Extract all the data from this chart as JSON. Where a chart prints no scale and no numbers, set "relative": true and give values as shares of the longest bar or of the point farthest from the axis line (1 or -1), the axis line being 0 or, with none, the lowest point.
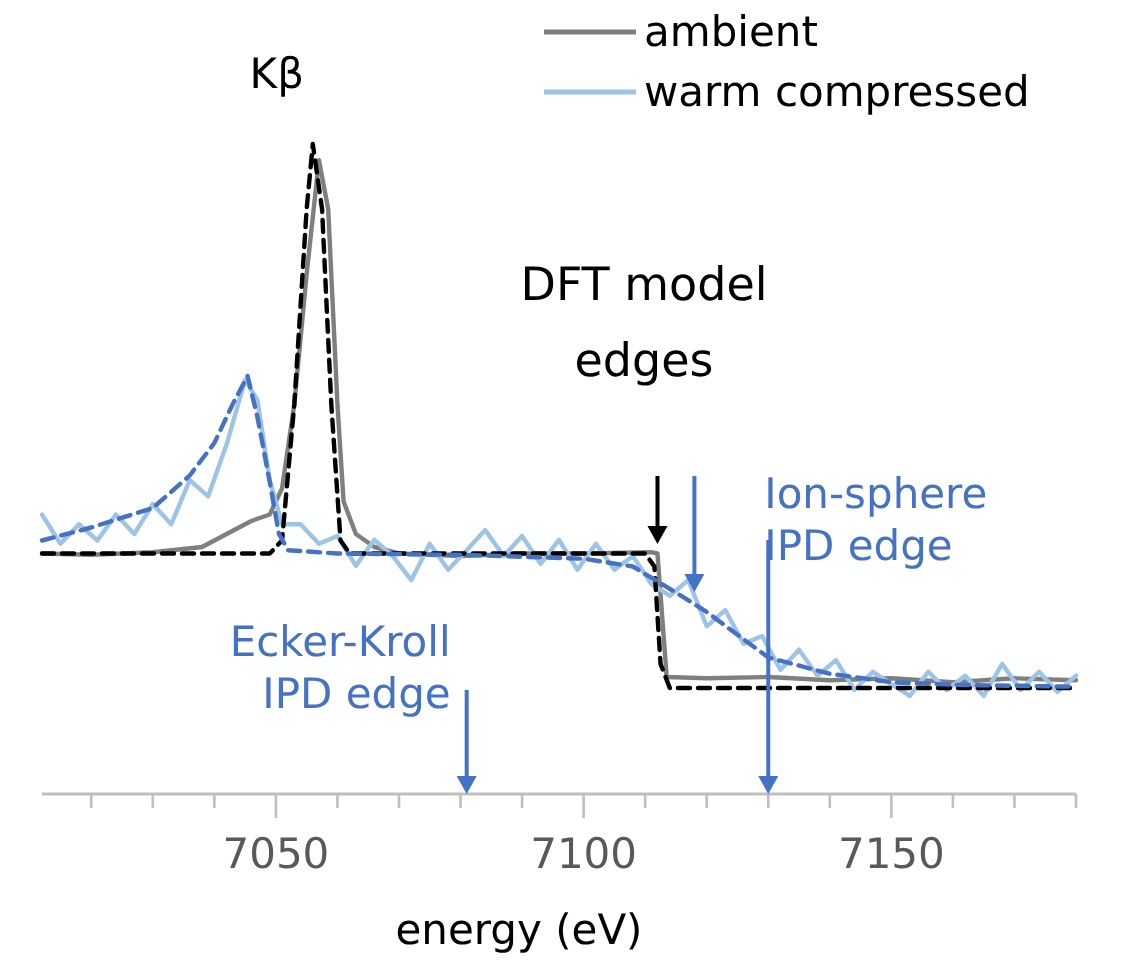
{
  "chart_data": {
    "type": "line",
    "relative": true,
    "xlabel": "energy (eV)",
    "legend": "top right",
    "xlim": [
      7012,
      7180
    ],
    "xticks": [
      {
        "value": 7020,
        "label": null
      },
      {
        "value": 7030,
        "label": null
      },
      {
        "value": 7040,
        "label": null
      },
      7050,
      {
        "value": 7060,
        "label": null
      },
      {
        "value": 7070,
        "label": null
      },
      {
        "value": 7080,
        "label": null
      },
      {
        "value": 7090,
        "label": null
      },
      7100,
      {
        "value": 7110,
        "label": null
      },
      {
        "value": 7120,
        "label": null
      },
      {
        "value": 7130,
        "label": null
      },
      {
        "value": 7140,
        "label": null
      },
      7150,
      {
        "value": 7160,
        "label": null
      },
      {
        "value": 7170,
        "label": null
      },
      {
        "value": 7180,
        "label": null
      }
    ],
    "series": [
      {
        "name": "ambient",
        "color": "#7f7f7f",
        "line_style": "solid",
        "x": [
          7012,
          7020,
          7030,
          7038,
          7042,
          7046,
          7049,
          7051,
          7053,
          7055,
          7057,
          7058.5,
          7060,
          7061,
          7063,
          7066,
          7070,
          7080,
          7090,
          7100,
          7111,
          7112,
          7113.5,
          7120,
          7130,
          7140,
          7150,
          7160,
          7170,
          7180
        ],
        "values": [
          0.37,
          0.368,
          0.372,
          0.38,
          0.4,
          0.42,
          0.43,
          0.47,
          0.6,
          0.8,
          0.975,
          0.9,
          0.6,
          0.45,
          0.4,
          0.38,
          0.37,
          0.366,
          0.37,
          0.37,
          0.372,
          0.37,
          0.18,
          0.178,
          0.18,
          0.175,
          0.178,
          0.172,
          0.178,
          0.175
        ]
      },
      {
        "name": "warm compressed",
        "color": "#9dc3e6",
        "line_style": "solid",
        "x": [
          7012,
          7015,
          7018,
          7021,
          7024,
          7027,
          7030,
          7033,
          7036,
          7039,
          7042,
          7045,
          7047,
          7049,
          7051,
          7054,
          7057,
          7060,
          7063,
          7066,
          7069,
          7072,
          7075,
          7078,
          7081,
          7084,
          7087,
          7090,
          7093,
          7096,
          7099,
          7102,
          7105,
          7108,
          7111,
          7114,
          7117,
          7120,
          7123,
          7126,
          7129,
          7132,
          7135,
          7138,
          7141,
          7144,
          7147,
          7150,
          7153,
          7156,
          7159,
          7162,
          7165,
          7168,
          7171,
          7174,
          7177,
          7180
        ],
        "values": [
          0.43,
          0.385,
          0.415,
          0.39,
          0.43,
          0.4,
          0.446,
          0.415,
          0.483,
          0.458,
          0.538,
          0.637,
          0.606,
          0.483,
          0.415,
          0.415,
          0.385,
          0.397,
          0.351,
          0.391,
          0.366,
          0.329,
          0.385,
          0.345,
          0.375,
          0.406,
          0.366,
          0.397,
          0.354,
          0.391,
          0.345,
          0.385,
          0.345,
          0.366,
          0.323,
          0.305,
          0.329,
          0.258,
          0.283,
          0.231,
          0.243,
          0.191,
          0.222,
          0.182,
          0.206,
          0.16,
          0.188,
          0.169,
          0.151,
          0.188,
          0.16,
          0.182,
          0.151,
          0.2,
          0.16,
          0.188,
          0.157,
          0.182
        ]
      },
      {
        "color": "#000000",
        "line_style": "dashed",
        "x": [
          7012,
          7049,
          7051,
          7053,
          7055,
          7056,
          7057.5,
          7059,
          7060.5,
          7062,
          7110,
          7111.5,
          7112.5,
          7114,
          7180
        ],
        "values": [
          0.37,
          0.37,
          0.39,
          0.6,
          0.9,
          1.0,
          0.9,
          0.6,
          0.39,
          0.37,
          0.37,
          0.35,
          0.2,
          0.163,
          0.163
        ]
      },
      {
        "color": "#4472c4",
        "line_style": "dashed",
        "x": [
          7012,
          7020,
          7030,
          7036,
          7040,
          7043,
          7045.4,
          7047,
          7049,
          7050.5,
          7052,
          7060,
          7080,
          7100,
          7108,
          7115,
          7120,
          7125,
          7130,
          7140,
          7150,
          7160,
          7180
        ],
        "values": [
          0.39,
          0.41,
          0.44,
          0.49,
          0.54,
          0.6,
          0.643,
          0.58,
          0.48,
          0.4,
          0.375,
          0.37,
          0.368,
          0.362,
          0.35,
          0.31,
          0.28,
          0.245,
          0.21,
          0.185,
          0.172,
          0.168,
          0.165
        ]
      }
    ],
    "ref_lines": [
      {
        "axis": "x",
        "value": 7112,
        "label": null,
        "color": "#000000"
      },
      {
        "axis": "x",
        "value": 7118,
        "label": null,
        "color": "#4472c4"
      },
      {
        "axis": "x",
        "value": 7081,
        "label": "Ecker-Kroll\nIPD edge",
        "color": "#4472c4"
      },
      {
        "axis": "x",
        "value": 7130,
        "label": "Ion-sphere\nIPD edge",
        "color": "#4472c4"
      }
    ],
    "annotations": [
      {
        "text": "Kβ",
        "x": 7056,
        "y": 1.0
      },
      "DFT model\nedges"
    ]
  }
}
